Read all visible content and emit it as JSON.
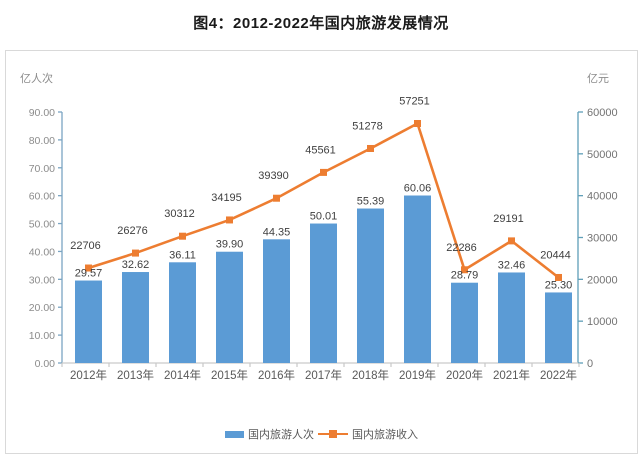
{
  "page_title": "图4：2012-2022年国内旅游发展情况",
  "chart_data": {
    "type": "bar+line combo",
    "title": "图4：2012-2022年国内旅游发展情况",
    "categories": [
      "2012年",
      "2013年",
      "2014年",
      "2015年",
      "2016年",
      "2017年",
      "2018年",
      "2019年",
      "2020年",
      "2021年",
      "2022年"
    ],
    "series": [
      {
        "name": "国内旅游人次",
        "type": "bar",
        "axis": "left",
        "color": "#5b9bd5",
        "values": [
          29.57,
          32.62,
          36.11,
          39.9,
          44.35,
          50.01,
          55.39,
          60.06,
          28.79,
          32.46,
          25.3
        ]
      },
      {
        "name": "国内旅游收入",
        "type": "line",
        "axis": "right",
        "color": "#ed7d31",
        "marker": "square",
        "values": [
          22706,
          26276,
          30312,
          34195,
          39390,
          45561,
          51278,
          57251,
          22286,
          29191,
          20444
        ]
      }
    ],
    "left_axis": {
      "unit_label": "亿人次",
      "min": 0,
      "max": 90,
      "step": 10,
      "decimals": 2,
      "axis_color": "#7ba5c2"
    },
    "right_axis": {
      "unit_label": "亿元",
      "min": 0,
      "max": 60000,
      "step": 10000,
      "decimals": 0,
      "axis_color": "#5f9fb8"
    },
    "x_axis_color": "#c9c9c9",
    "grid": false,
    "data_labels": true,
    "legend_position": "bottom"
  },
  "legend": {
    "items": [
      {
        "label": "国内旅游人次",
        "swatch": "bar",
        "color": "#5b9bd5"
      },
      {
        "label": "国内旅游收入",
        "swatch": "line-square-marker",
        "color": "#ed7d31"
      }
    ]
  }
}
